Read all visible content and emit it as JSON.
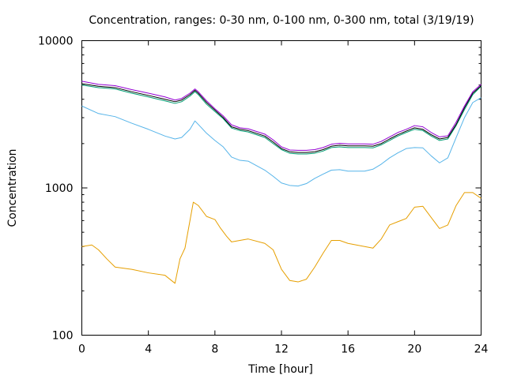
{
  "chart_data": {
    "type": "line",
    "title": "Concentration, ranges: 0-30 nm, 0-100 nm, 0-300 nm, total (3/19/19)",
    "xlabel": "Time [hour]",
    "ylabel": "Concentration",
    "xlim": [
      0,
      24
    ],
    "ylim": [
      100,
      10000
    ],
    "yscale": "log",
    "grid": false,
    "legend": "none",
    "xticks": [
      0,
      4,
      8,
      12,
      16,
      20,
      24
    ],
    "xtick_labels": [
      "0",
      "4",
      "8",
      "12",
      "16",
      "20",
      "24"
    ],
    "yticks": [
      100,
      1000,
      10000
    ],
    "ytick_labels": [
      "100",
      "1000",
      "10000"
    ],
    "series": [
      {
        "color": "#e69f00",
        "x": [
          0,
          0.6,
          1,
          1.5,
          2,
          3,
          4,
          5,
          5.6,
          5.9,
          6.2,
          6.5,
          6.7,
          7,
          7.5,
          8,
          8.3,
          8.7,
          9,
          9.5,
          10,
          11,
          11.5,
          12,
          12.5,
          13,
          13.5,
          14,
          14.5,
          15,
          15.5,
          16,
          17,
          17.5,
          18,
          18.5,
          19,
          19.5,
          20,
          20.5,
          21,
          21.5,
          22,
          22.5,
          23,
          23.5,
          24
        ],
        "y": [
          400,
          410,
          380,
          330,
          290,
          280,
          265,
          255,
          225,
          330,
          390,
          600,
          800,
          760,
          640,
          610,
          540,
          470,
          430,
          440,
          450,
          420,
          380,
          280,
          235,
          230,
          240,
          290,
          360,
          440,
          440,
          420,
          400,
          390,
          450,
          560,
          590,
          620,
          740,
          750,
          630,
          530,
          560,
          760,
          930,
          930,
          850
        ]
      },
      {
        "color": "#56b4e9",
        "x": [
          0,
          1,
          2,
          3,
          4,
          5,
          5.6,
          6,
          6.5,
          6.8,
          7,
          7.5,
          8,
          8.5,
          9,
          9.5,
          10,
          11,
          11.5,
          12,
          12.5,
          13,
          13.5,
          14,
          14.5,
          15,
          15.5,
          16,
          17,
          17.5,
          18,
          18.5,
          19,
          19.5,
          20,
          20.5,
          21,
          21.5,
          22,
          22.5,
          23,
          23.5,
          24
        ],
        "y": [
          3600,
          3200,
          3050,
          2750,
          2500,
          2250,
          2150,
          2200,
          2500,
          2850,
          2700,
          2350,
          2100,
          1900,
          1620,
          1540,
          1520,
          1320,
          1200,
          1080,
          1040,
          1030,
          1070,
          1160,
          1240,
          1320,
          1330,
          1300,
          1300,
          1340,
          1450,
          1600,
          1730,
          1850,
          1880,
          1870,
          1650,
          1480,
          1600,
          2200,
          3000,
          3800,
          4100
        ]
      },
      {
        "color": "#009e73",
        "x": [
          0,
          1,
          2,
          3,
          4,
          5,
          5.6,
          6,
          6.5,
          6.8,
          7,
          7.5,
          8,
          8.5,
          9,
          9.5,
          10,
          11,
          11.5,
          12,
          12.5,
          13,
          13.5,
          14,
          14.5,
          15,
          15.5,
          16,
          17,
          17.5,
          18,
          18.5,
          19,
          19.5,
          20,
          20.5,
          21,
          21.5,
          22,
          22.5,
          23,
          23.5,
          24
        ],
        "y": [
          5000,
          4800,
          4700,
          4400,
          4150,
          3900,
          3750,
          3850,
          4200,
          4500,
          4300,
          3700,
          3300,
          2950,
          2550,
          2450,
          2400,
          2200,
          2000,
          1820,
          1720,
          1700,
          1700,
          1720,
          1780,
          1880,
          1900,
          1880,
          1880,
          1870,
          1960,
          2100,
          2250,
          2380,
          2500,
          2450,
          2250,
          2100,
          2150,
          2650,
          3400,
          4300,
          4900
        ]
      },
      {
        "color": "#000000",
        "x": [
          0,
          1,
          2,
          3,
          4,
          5,
          5.6,
          6,
          6.5,
          6.8,
          7,
          7.5,
          8,
          8.5,
          9,
          9.5,
          10,
          11,
          11.5,
          12,
          12.5,
          13,
          13.5,
          14,
          14.5,
          15,
          15.5,
          16,
          17,
          17.5,
          18,
          18.5,
          19,
          19.5,
          20,
          20.5,
          21,
          21.5,
          22,
          22.5,
          23,
          23.5,
          24
        ],
        "y": [
          5100,
          4900,
          4800,
          4500,
          4250,
          4000,
          3850,
          3950,
          4300,
          4600,
          4400,
          3800,
          3380,
          3000,
          2600,
          2500,
          2450,
          2250,
          2050,
          1850,
          1760,
          1740,
          1740,
          1760,
          1820,
          1920,
          1950,
          1930,
          1930,
          1920,
          2000,
          2150,
          2300,
          2430,
          2560,
          2500,
          2300,
          2150,
          2200,
          2700,
          3500,
          4400,
          4950
        ]
      },
      {
        "color": "#9400d3",
        "x": [
          0,
          1,
          2,
          3,
          4,
          5,
          5.6,
          6,
          6.5,
          6.8,
          7,
          7.5,
          8,
          8.5,
          9,
          9.5,
          10,
          11,
          11.5,
          12,
          12.5,
          13,
          13.5,
          14,
          14.5,
          15,
          15.5,
          16,
          17,
          17.5,
          18,
          18.5,
          19,
          19.5,
          20,
          20.5,
          21,
          21.5,
          22,
          22.5,
          23,
          23.5,
          24
        ],
        "y": [
          5300,
          5050,
          4950,
          4650,
          4400,
          4150,
          3950,
          4050,
          4400,
          4700,
          4500,
          3900,
          3450,
          3080,
          2680,
          2560,
          2520,
          2320,
          2120,
          1900,
          1810,
          1800,
          1800,
          1820,
          1880,
          1980,
          2010,
          1990,
          1990,
          1980,
          2070,
          2220,
          2380,
          2500,
          2650,
          2600,
          2380,
          2220,
          2260,
          2800,
          3600,
          4500,
          5050
        ]
      }
    ]
  }
}
